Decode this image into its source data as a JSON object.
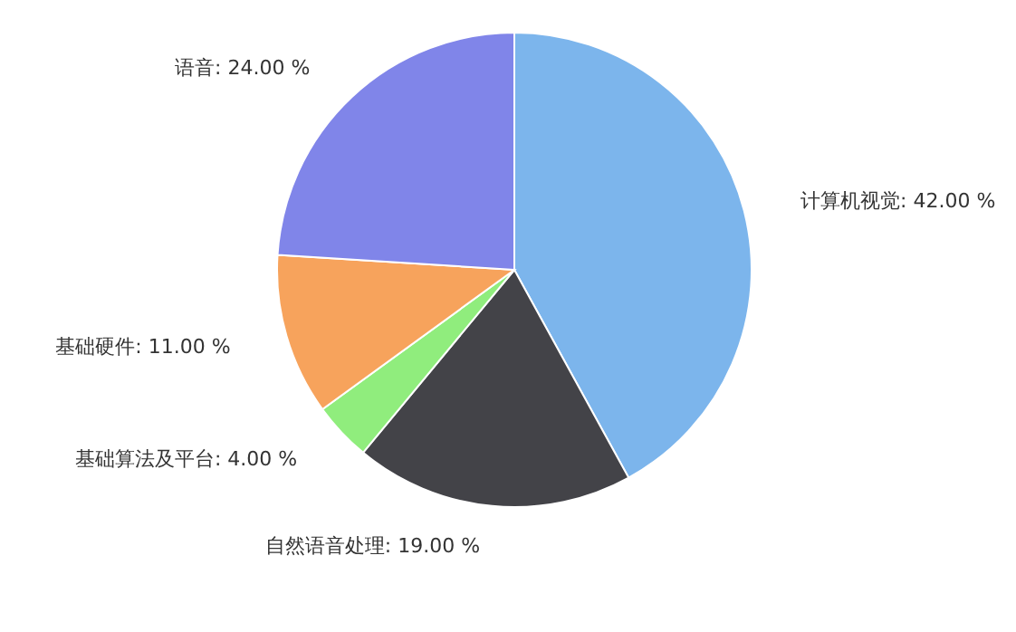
{
  "chart_data": {
    "type": "pie",
    "categories": [
      "计算机视觉",
      "自然语音处理",
      "基础算法及平台",
      "基础硬件",
      "语音"
    ],
    "values": [
      42,
      19,
      4,
      11,
      24
    ],
    "value_labels": [
      "42.00 %",
      "19.00 %",
      "4.00 %",
      "11.00 %",
      "24.00 %"
    ],
    "colors": [
      "#7cb5ec",
      "#434348",
      "#90ed7d",
      "#f7a35c",
      "#8085e9"
    ],
    "legend": false
  }
}
